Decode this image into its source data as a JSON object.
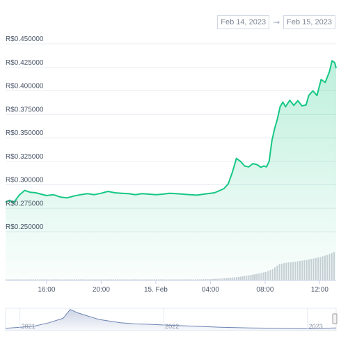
{
  "date_range": {
    "start": "Feb 14, 2023",
    "arrow": "→",
    "end": "Feb 15, 2023"
  },
  "colors": {
    "line": "#16c784",
    "grid": "#e8ecf2",
    "volume": "#c9ced6",
    "navigator": "#6c83b3"
  },
  "chart_data": {
    "type": "area",
    "ytick_labels": [
      "R$0.450000",
      "R$0.425000",
      "R$0.400000",
      "R$0.375000",
      "R$0.350000",
      "R$0.325000",
      "R$0.300000",
      "R$0.275000",
      "R$0.250000"
    ],
    "yticks": [
      0.45,
      0.425,
      0.4,
      0.375,
      0.35,
      0.325,
      0.3,
      0.275,
      0.25
    ],
    "ylim": [
      0.25,
      0.45
    ],
    "xtick_labels": [
      "16:00",
      "20:00",
      "15. Feb",
      "04:00",
      "08:00",
      "12:00"
    ],
    "xtick_hours": [
      16,
      20,
      24,
      28,
      32,
      36
    ],
    "xlim_hours": [
      13,
      37.2
    ],
    "grid": true,
    "series": [
      {
        "x_hours": [
          13.0,
          13.3,
          13.6,
          14.0,
          14.4,
          14.8,
          15.2,
          15.6,
          16.0,
          16.5,
          17.0,
          17.5,
          18.0,
          18.5,
          19.0,
          19.5,
          20.0,
          20.5,
          21.0,
          21.5,
          22.0,
          22.5,
          23.0,
          23.5,
          24.0,
          24.5,
          25.0,
          25.5,
          26.0,
          26.5,
          27.0,
          27.5,
          28.0,
          28.3,
          28.7,
          29.0,
          29.3,
          29.6,
          29.9,
          30.2,
          30.5,
          30.8,
          31.1,
          31.4,
          31.7,
          31.9,
          32.1,
          32.3,
          32.5,
          32.7,
          32.9,
          33.1,
          33.3,
          33.5,
          33.8,
          34.1,
          34.4,
          34.7,
          35.0,
          35.2,
          35.5,
          35.8,
          36.1,
          36.4,
          36.7,
          36.9,
          37.1,
          37.2
        ],
        "values": [
          0.2815,
          0.2835,
          0.281,
          0.289,
          0.294,
          0.292,
          0.2915,
          0.29,
          0.2885,
          0.2895,
          0.287,
          0.286,
          0.288,
          0.2895,
          0.2905,
          0.2895,
          0.291,
          0.293,
          0.2915,
          0.291,
          0.2905,
          0.2895,
          0.2905,
          0.29,
          0.2895,
          0.29,
          0.291,
          0.2905,
          0.29,
          0.2895,
          0.289,
          0.29,
          0.291,
          0.2915,
          0.294,
          0.296,
          0.301,
          0.313,
          0.328,
          0.325,
          0.32,
          0.319,
          0.3225,
          0.3215,
          0.3185,
          0.32,
          0.319,
          0.325,
          0.347,
          0.36,
          0.37,
          0.383,
          0.388,
          0.383,
          0.39,
          0.3845,
          0.3895,
          0.384,
          0.385,
          0.395,
          0.4,
          0.395,
          0.412,
          0.409,
          0.42,
          0.432,
          0.43,
          0.424
        ]
      }
    ]
  },
  "volume": {
    "ylim": [
      0,
      1
    ],
    "x_hours": [
      13.0,
      14.0,
      15.0,
      16.0,
      17.0,
      18.0,
      19.0,
      20.0,
      21.0,
      22.0,
      23.0,
      24.0,
      25.0,
      26.0,
      27.0,
      28.0,
      29.0,
      30.0,
      31.0,
      32.0,
      32.5,
      33.0,
      33.5,
      34.0,
      34.5,
      35.0,
      35.5,
      36.0,
      36.5,
      37.0,
      37.2
    ],
    "values": [
      0.03,
      0.03,
      0.03,
      0.03,
      0.03,
      0.03,
      0.03,
      0.03,
      0.03,
      0.03,
      0.03,
      0.03,
      0.03,
      0.03,
      0.03,
      0.04,
      0.06,
      0.1,
      0.16,
      0.24,
      0.32,
      0.46,
      0.5,
      0.52,
      0.55,
      0.58,
      0.62,
      0.66,
      0.72,
      0.8,
      0.86
    ]
  },
  "navigator": {
    "labels": [
      "2021",
      "2022",
      "2023"
    ],
    "label_years": [
      2021,
      2022,
      2023
    ],
    "xlim_years": [
      2020.9,
      2023.2
    ],
    "x_years": [
      2020.9,
      2021.0,
      2021.1,
      2021.2,
      2021.3,
      2021.35,
      2021.4,
      2021.45,
      2021.5,
      2021.55,
      2021.6,
      2021.7,
      2021.8,
      2021.9,
      2022.0,
      2022.2,
      2022.4,
      2022.6,
      2022.8,
      2023.0,
      2023.1,
      2023.2
    ],
    "values": [
      0.1,
      0.15,
      0.2,
      0.35,
      0.55,
      0.95,
      0.8,
      0.7,
      0.6,
      0.5,
      0.45,
      0.35,
      0.3,
      0.28,
      0.25,
      0.2,
      0.15,
      0.12,
      0.1,
      0.08,
      0.1,
      0.12
    ]
  }
}
